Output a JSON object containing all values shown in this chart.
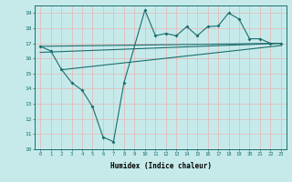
{
  "xlabel": "Humidex (Indice chaleur)",
  "bg_color": "#c6eaea",
  "grid_color": "#e8b4b4",
  "line_color": "#1a6e6e",
  "xlim": [
    -0.5,
    23.5
  ],
  "ylim": [
    10,
    19.5
  ],
  "yticks": [
    10,
    11,
    12,
    13,
    14,
    15,
    16,
    17,
    18,
    19
  ],
  "xticks": [
    0,
    1,
    2,
    3,
    4,
    5,
    6,
    7,
    8,
    9,
    10,
    11,
    12,
    13,
    14,
    15,
    16,
    17,
    18,
    19,
    20,
    21,
    22,
    23
  ],
  "zigzag_x": [
    0,
    1,
    2,
    3,
    4,
    5,
    6,
    7,
    8,
    10,
    11,
    12,
    13,
    14,
    15,
    16,
    17,
    18,
    19,
    20,
    21,
    22,
    23
  ],
  "zigzag_y": [
    16.8,
    16.5,
    15.3,
    14.4,
    13.9,
    12.8,
    10.8,
    10.5,
    14.4,
    19.2,
    17.5,
    17.65,
    17.5,
    18.1,
    17.5,
    18.1,
    18.15,
    19.0,
    18.6,
    17.3,
    17.3,
    17.0,
    17.0
  ],
  "line1_x": [
    0,
    23
  ],
  "line1_y": [
    16.8,
    17.0
  ],
  "line2_x": [
    0,
    23
  ],
  "line2_y": [
    16.4,
    17.0
  ],
  "line3_x": [
    2,
    23
  ],
  "line3_y": [
    15.25,
    16.85
  ]
}
